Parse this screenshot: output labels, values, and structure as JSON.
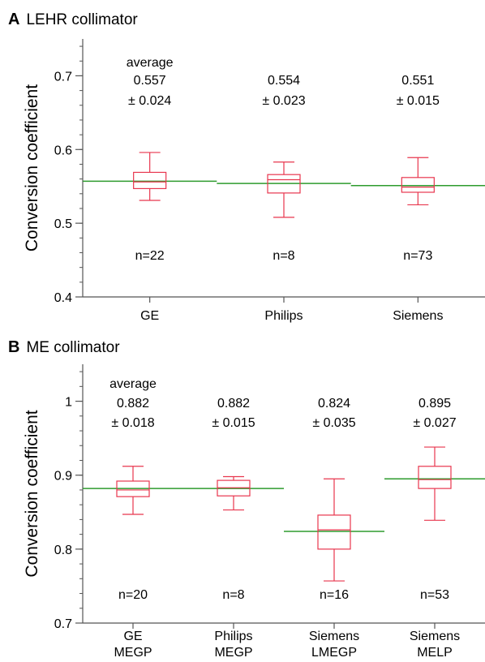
{
  "colors": {
    "box": "#e8364e",
    "mean_line": "#2e9b2e",
    "axis": "#555555",
    "text": "#000000"
  },
  "chart_data": [
    {
      "panel_label": "A",
      "title": "LEHR collimator",
      "type": "box",
      "ylabel": "Conversion coefficient",
      "ylim": [
        0.4,
        0.75
      ],
      "yticks": [
        0.4,
        0.5,
        0.6,
        0.7
      ],
      "ytick_labels": [
        "0.4",
        "0.5",
        "0.6",
        "0.7"
      ],
      "categories": [
        [
          "GE"
        ],
        [
          "Philips"
        ],
        [
          "Siemens"
        ]
      ],
      "average_label": "average",
      "averages": [
        "0.557",
        "0.554",
        "0.551"
      ],
      "sds": [
        "± 0.024",
        "± 0.023",
        "± 0.015"
      ],
      "n_labels": [
        "n=22",
        "n=8",
        "n=73"
      ],
      "mean_values": [
        0.557,
        0.554,
        0.551
      ],
      "boxes": [
        {
          "whisker_low": 0.531,
          "q1": 0.547,
          "median": 0.556,
          "q3": 0.569,
          "whisker_high": 0.596
        },
        {
          "whisker_low": 0.508,
          "q1": 0.541,
          "median": 0.559,
          "q3": 0.566,
          "whisker_high": 0.583
        },
        {
          "whisker_low": 0.525,
          "q1": 0.542,
          "median": 0.549,
          "q3": 0.562,
          "whisker_high": 0.589
        }
      ]
    },
    {
      "panel_label": "B",
      "title": "ME collimator",
      "type": "box",
      "ylabel": "Conversion coefficient",
      "ylim": [
        0.7,
        1.05
      ],
      "yticks": [
        0.7,
        0.8,
        0.9,
        1.0
      ],
      "ytick_labels": [
        "0.7",
        "0.8",
        "0.9",
        "1"
      ],
      "categories": [
        [
          "GE",
          "MEGP"
        ],
        [
          "Philips",
          "MEGP"
        ],
        [
          "Siemens",
          "LMEGP"
        ],
        [
          "Siemens",
          "MELP"
        ]
      ],
      "average_label": "average",
      "averages": [
        "0.882",
        "0.882",
        "0.824",
        "0.895"
      ],
      "sds": [
        "± 0.018",
        "± 0.015",
        "± 0.035",
        "± 0.027"
      ],
      "n_labels": [
        "n=20",
        "n=8",
        "n=16",
        "n=53"
      ],
      "mean_values": [
        0.882,
        0.882,
        0.824,
        0.895
      ],
      "boxes": [
        {
          "whisker_low": 0.847,
          "q1": 0.871,
          "median": 0.88,
          "q3": 0.892,
          "whisker_high": 0.912
        },
        {
          "whisker_low": 0.853,
          "q1": 0.872,
          "median": 0.883,
          "q3": 0.893,
          "whisker_high": 0.898
        },
        {
          "whisker_low": 0.757,
          "q1": 0.8,
          "median": 0.826,
          "q3": 0.846,
          "whisker_high": 0.895
        },
        {
          "whisker_low": 0.839,
          "q1": 0.882,
          "median": 0.894,
          "q3": 0.912,
          "whisker_high": 0.938
        }
      ]
    }
  ]
}
